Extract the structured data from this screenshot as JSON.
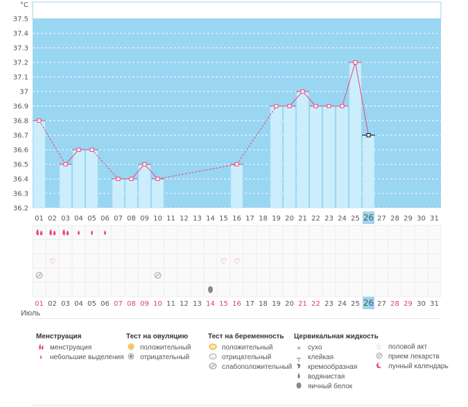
{
  "chart_data": {
    "type": "line",
    "unit": "°C",
    "y_ticks": [
      "37.5",
      "37.4",
      "37.3",
      "37.2",
      "37.1",
      "37",
      "36.9",
      "36.8",
      "36.7",
      "36.6",
      "36.5",
      "36.4",
      "36.3",
      "36.2"
    ],
    "ylim": [
      36.2,
      37.5
    ],
    "days": [
      "01",
      "02",
      "03",
      "04",
      "05",
      "06",
      "07",
      "08",
      "09",
      "10",
      "11",
      "12",
      "13",
      "14",
      "15",
      "16",
      "17",
      "18",
      "19",
      "20",
      "21",
      "22",
      "23",
      "24",
      "25",
      "26",
      "27",
      "28",
      "29",
      "30",
      "31"
    ],
    "temps": [
      36.8,
      null,
      36.5,
      36.6,
      36.6,
      null,
      36.4,
      36.4,
      36.5,
      36.4,
      null,
      null,
      null,
      null,
      null,
      36.5,
      null,
      null,
      36.9,
      36.9,
      37.0,
      36.9,
      36.9,
      36.9,
      37.2,
      36.7,
      null,
      null,
      null,
      null,
      null
    ],
    "today": "26",
    "pink_day_labels": [
      "01",
      "07",
      "08",
      "09",
      "10",
      "14",
      "15",
      "16",
      "21",
      "22",
      "28",
      "29"
    ],
    "month": "Июль",
    "menstruation": [
      {
        "day": "01",
        "level": "heavy"
      },
      {
        "day": "02",
        "level": "heavy"
      },
      {
        "day": "03",
        "level": "heavy"
      },
      {
        "day": "04",
        "level": "light"
      },
      {
        "day": "05",
        "level": "light"
      },
      {
        "day": "06",
        "level": "light"
      }
    ],
    "intercourse_days": [
      "02",
      "15",
      "16"
    ],
    "medication_days": [
      "01",
      "10"
    ],
    "fluid_days": [
      {
        "day": "14",
        "type": "egg-white"
      }
    ]
  },
  "colors": {
    "sky": "#99d6f2",
    "bar": "#cceefc",
    "bar_edge": "#a9dcf3",
    "line": "#e8467c",
    "today_bg": "#9bd6f0",
    "pink_text": "#e03c6e"
  },
  "legend": {
    "menstruation": {
      "title": "Менструация",
      "items": [
        {
          "icon": "menstruation-icon",
          "label": "менструация"
        },
        {
          "icon": "light-discharge-icon",
          "label": "небольшие выделения"
        }
      ]
    },
    "ovulation": {
      "title": "Тест на овуляцию",
      "items": [
        {
          "icon": "ovulation-positive-icon",
          "label": "положительный"
        },
        {
          "icon": "ovulation-negative-icon",
          "label": "отрицательный"
        }
      ]
    },
    "pregnancy": {
      "title": "Тест на беременность",
      "items": [
        {
          "icon": "pregnancy-positive-icon",
          "label": "положительный"
        },
        {
          "icon": "pregnancy-negative-icon",
          "label": "отрицательный"
        },
        {
          "icon": "pregnancy-weak-icon",
          "label": "слабоположительный"
        }
      ]
    },
    "cervical": {
      "title": "Цервикальная жидкость",
      "items": [
        {
          "icon": "dry-icon",
          "label": "сухо"
        },
        {
          "icon": "sticky-icon",
          "label": "клейкая"
        },
        {
          "icon": "creamy-icon",
          "label": "кремообразная"
        },
        {
          "icon": "watery-icon",
          "label": "водянистая"
        },
        {
          "icon": "egg-white-icon",
          "label": "яичный белок"
        }
      ]
    },
    "other": {
      "items": [
        {
          "icon": "intercourse-icon",
          "label": "половой акт"
        },
        {
          "icon": "medication-icon",
          "label": "прием лекарств"
        },
        {
          "icon": "lunar-calendar-icon",
          "label": "лунный календарь"
        }
      ]
    }
  }
}
